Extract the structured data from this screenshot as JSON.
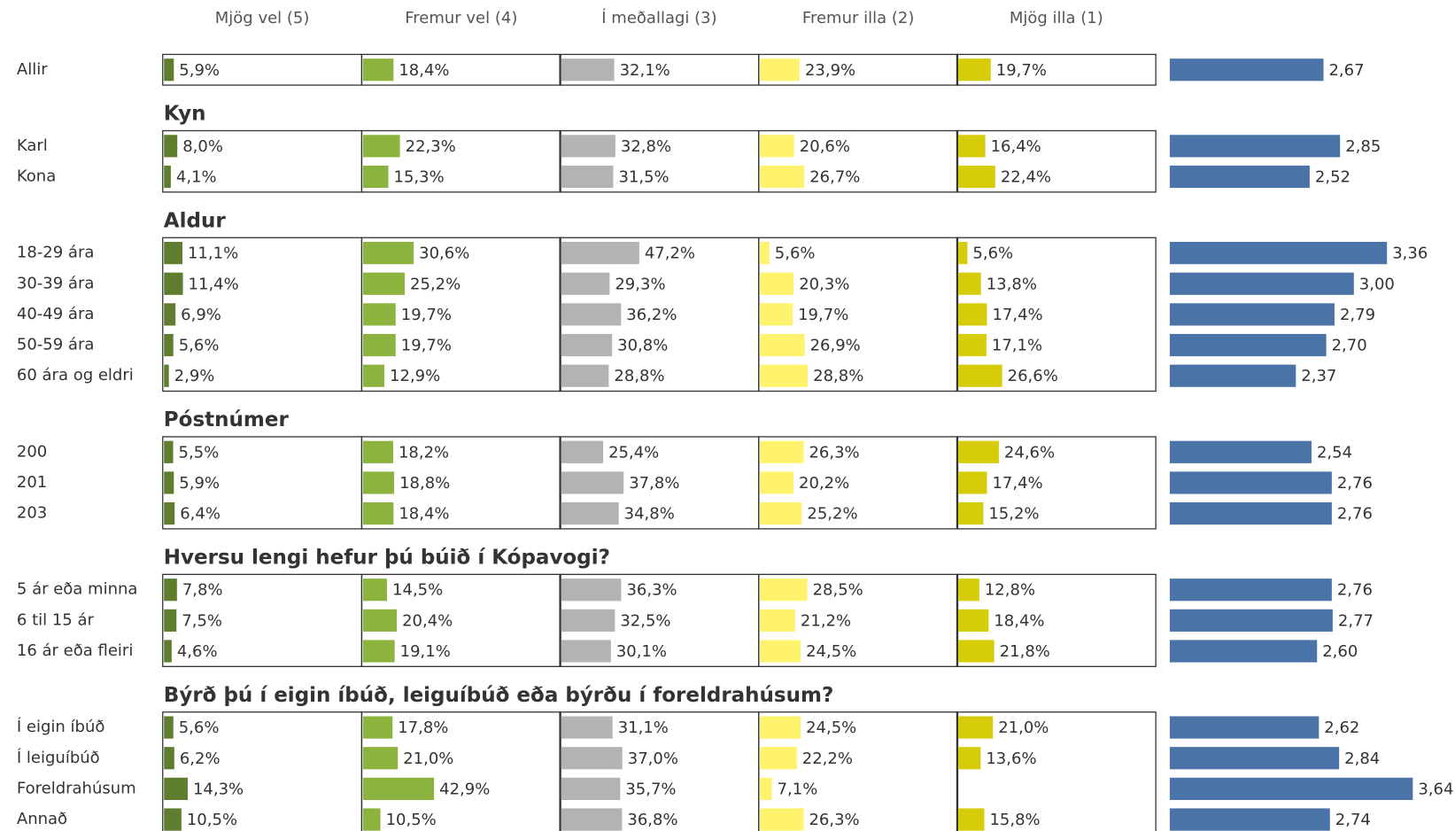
{
  "chart_data": {
    "type": "bar",
    "xlim": [
      0,
      100
    ],
    "mean_xlim": [
      1,
      5
    ],
    "mean_color": "#4a74a8",
    "columns": [
      {
        "name": "Mjög vel (5)",
        "color": "#5e7d2e"
      },
      {
        "name": "Fremur vel (4)",
        "color": "#8db33f"
      },
      {
        "name": "Í meðallagi (3)",
        "color": "#b3b3b3"
      },
      {
        "name": "Fremur illa (2)",
        "color": "#fff36e"
      },
      {
        "name": "Mjög illa (1)",
        "color": "#d6cc0a"
      }
    ],
    "groups": [
      {
        "rows": [
          {
            "label": "Allir",
            "values": [
              5.9,
              18.4,
              32.1,
              23.9,
              19.7
            ],
            "value_labels": [
              "5,9%",
              "18,4%",
              "32,1%",
              "23,9%",
              "19,7%"
            ],
            "mean": 2.67,
            "mean_label": "2,67"
          }
        ]
      },
      {
        "title": "Kyn",
        "rows": [
          {
            "label": "Karl",
            "values": [
              8.0,
              22.3,
              32.8,
              20.6,
              16.4
            ],
            "value_labels": [
              "8,0%",
              "22,3%",
              "32,8%",
              "20,6%",
              "16,4%"
            ],
            "mean": 2.85,
            "mean_label": "2,85"
          },
          {
            "label": "Kona",
            "values": [
              4.1,
              15.3,
              31.5,
              26.7,
              22.4
            ],
            "value_labels": [
              "4,1%",
              "15,3%",
              "31,5%",
              "26,7%",
              "22,4%"
            ],
            "mean": 2.52,
            "mean_label": "2,52"
          }
        ]
      },
      {
        "title": "Aldur",
        "rows": [
          {
            "label": "18-29 ára",
            "values": [
              11.1,
              30.6,
              47.2,
              5.6,
              5.6
            ],
            "value_labels": [
              "11,1%",
              "30,6%",
              "47,2%",
              "5,6%",
              "5,6%"
            ],
            "mean": 3.36,
            "mean_label": "3,36"
          },
          {
            "label": "30-39  ára",
            "values": [
              11.4,
              25.2,
              29.3,
              20.3,
              13.8
            ],
            "value_labels": [
              "11,4%",
              "25,2%",
              "29,3%",
              "20,3%",
              "13,8%"
            ],
            "mean": 3.0,
            "mean_label": "3,00"
          },
          {
            "label": "40-49 ára",
            "values": [
              6.9,
              19.7,
              36.2,
              19.7,
              17.4
            ],
            "value_labels": [
              "6,9%",
              "19,7%",
              "36,2%",
              "19,7%",
              "17,4%"
            ],
            "mean": 2.79,
            "mean_label": "2,79"
          },
          {
            "label": "50-59 ára",
            "values": [
              5.6,
              19.7,
              30.8,
              26.9,
              17.1
            ],
            "value_labels": [
              "5,6%",
              "19,7%",
              "30,8%",
              "26,9%",
              "17,1%"
            ],
            "mean": 2.7,
            "mean_label": "2,70"
          },
          {
            "label": "60 ára og eldri",
            "values": [
              2.9,
              12.9,
              28.8,
              28.8,
              26.6
            ],
            "value_labels": [
              "2,9%",
              "12,9%",
              "28,8%",
              "28,8%",
              "26,6%"
            ],
            "mean": 2.37,
            "mean_label": "2,37"
          }
        ]
      },
      {
        "title": "Póstnúmer",
        "rows": [
          {
            "label": "200",
            "values": [
              5.5,
              18.2,
              25.4,
              26.3,
              24.6
            ],
            "value_labels": [
              "5,5%",
              "18,2%",
              "25,4%",
              "26,3%",
              "24,6%"
            ],
            "mean": 2.54,
            "mean_label": "2,54"
          },
          {
            "label": "201",
            "values": [
              5.9,
              18.8,
              37.8,
              20.2,
              17.4
            ],
            "value_labels": [
              "5,9%",
              "18,8%",
              "37,8%",
              "20,2%",
              "17,4%"
            ],
            "mean": 2.76,
            "mean_label": "2,76"
          },
          {
            "label": "203",
            "values": [
              6.4,
              18.4,
              34.8,
              25.2,
              15.2
            ],
            "value_labels": [
              "6,4%",
              "18,4%",
              "34,8%",
              "25,2%",
              "15,2%"
            ],
            "mean": 2.76,
            "mean_label": "2,76"
          }
        ]
      },
      {
        "title": "Hversu lengi hefur þú búið í Kópavogi?",
        "rows": [
          {
            "label": "5 ár eða minna",
            "values": [
              7.8,
              14.5,
              36.3,
              28.5,
              12.8
            ],
            "value_labels": [
              "7,8%",
              "14,5%",
              "36,3%",
              "28,5%",
              "12,8%"
            ],
            "mean": 2.76,
            "mean_label": "2,76"
          },
          {
            "label": "6 til 15 ár",
            "values": [
              7.5,
              20.4,
              32.5,
              21.2,
              18.4
            ],
            "value_labels": [
              "7,5%",
              "20,4%",
              "32,5%",
              "21,2%",
              "18,4%"
            ],
            "mean": 2.77,
            "mean_label": "2,77"
          },
          {
            "label": "16 ár eða fleiri",
            "values": [
              4.6,
              19.1,
              30.1,
              24.5,
              21.8
            ],
            "value_labels": [
              "4,6%",
              "19,1%",
              "30,1%",
              "24,5%",
              "21,8%"
            ],
            "mean": 2.6,
            "mean_label": "2,60"
          }
        ]
      },
      {
        "title": "Býrð þú í eigin íbúð, leiguíbúð eða býrðu í foreldrahúsum?",
        "rows": [
          {
            "label": "Í eigin íbúð",
            "values": [
              5.6,
              17.8,
              31.1,
              24.5,
              21.0
            ],
            "value_labels": [
              "5,6%",
              "17,8%",
              "31,1%",
              "24,5%",
              "21,0%"
            ],
            "mean": 2.62,
            "mean_label": "2,62"
          },
          {
            "label": "Í leiguíbúð",
            "values": [
              6.2,
              21.0,
              37.0,
              22.2,
              13.6
            ],
            "value_labels": [
              "6,2%",
              "21,0%",
              "37,0%",
              "22,2%",
              "13,6%"
            ],
            "mean": 2.84,
            "mean_label": "2,84"
          },
          {
            "label": "Foreldrahúsum",
            "values": [
              14.3,
              42.9,
              35.7,
              7.1,
              null
            ],
            "value_labels": [
              "14,3%",
              "42,9%",
              "35,7%",
              "7,1%",
              null
            ],
            "mean": 3.64,
            "mean_label": "3,64"
          },
          {
            "label": "Annað",
            "values": [
              10.5,
              10.5,
              36.8,
              26.3,
              15.8
            ],
            "value_labels": [
              "10,5%",
              "10,5%",
              "36,8%",
              "26,3%",
              "15,8%"
            ],
            "mean": 2.74,
            "mean_label": "2,74"
          }
        ]
      }
    ]
  }
}
